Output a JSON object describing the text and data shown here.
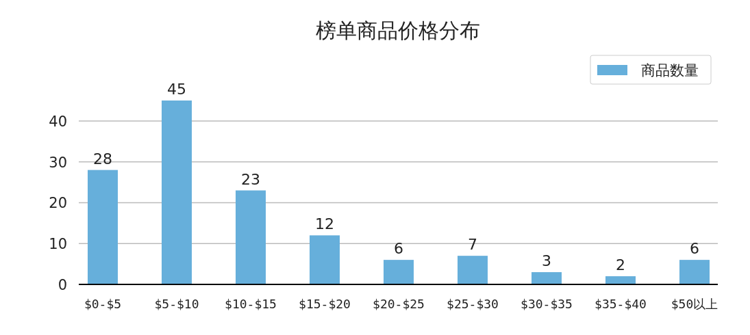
{
  "chart_data": {
    "type": "bar",
    "title": "榜单商品价格分布",
    "categories": [
      "$0-$5",
      "$5-$10",
      "$10-$15",
      "$15-$20",
      "$20-$25",
      "$25-$30",
      "$30-$35",
      "$35-$40",
      "$50以上"
    ],
    "series": [
      {
        "name": "商品数量",
        "color": "#66afdb",
        "values": [
          28,
          45,
          23,
          12,
          6,
          7,
          3,
          2,
          6
        ]
      }
    ],
    "ylim": [
      0,
      45
    ],
    "yticks": [
      0,
      10,
      20,
      30,
      40
    ],
    "grid": "y",
    "legend": "top right",
    "data_labels": true
  }
}
